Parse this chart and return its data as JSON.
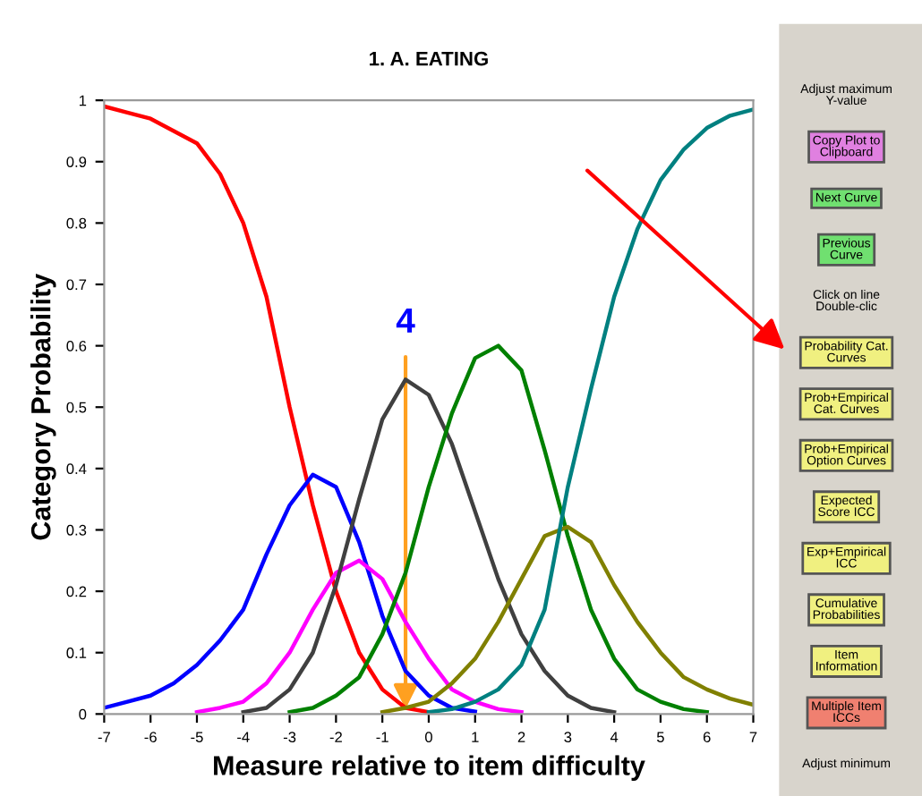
{
  "chart_data": {
    "type": "line",
    "title": "1. A. EATING",
    "xlabel": "Measure relative to item difficulty",
    "ylabel": "Category Probability",
    "x": [
      -7,
      -6.5,
      -6,
      -5.5,
      -5,
      -4.5,
      -4,
      -3.5,
      -3,
      -2.5,
      -2,
      -1.5,
      -1,
      -0.5,
      0,
      0.5,
      1,
      1.5,
      2,
      2.5,
      3,
      3.5,
      4,
      4.5,
      5,
      5.5,
      6,
      6.5,
      7
    ],
    "series": [
      {
        "color": "#ff0000",
        "values": [
          0.99,
          0.98,
          0.97,
          0.95,
          0.93,
          0.88,
          0.8,
          0.68,
          0.5,
          0.34,
          0.2,
          0.1,
          0.04,
          0.01,
          0.003,
          null,
          null,
          null,
          null,
          null,
          null,
          null,
          null,
          null,
          null,
          null,
          null,
          null,
          null
        ]
      },
      {
        "color": "#0000ff",
        "values": [
          0.01,
          0.02,
          0.03,
          0.05,
          0.08,
          0.12,
          0.17,
          0.26,
          0.34,
          0.39,
          0.37,
          0.28,
          0.16,
          0.07,
          0.03,
          0.01,
          0.004,
          null,
          null,
          null,
          null,
          null,
          null,
          null,
          null,
          null,
          null,
          null,
          null
        ]
      },
      {
        "color": "#ff00ff",
        "values": [
          null,
          null,
          null,
          null,
          0.003,
          0.01,
          0.02,
          0.05,
          0.1,
          0.17,
          0.23,
          0.25,
          0.22,
          0.15,
          0.09,
          0.04,
          0.02,
          0.008,
          0.003,
          null,
          null,
          null,
          null,
          null,
          null,
          null,
          null,
          null,
          null
        ]
      },
      {
        "color": "#404040",
        "values": [
          null,
          null,
          null,
          null,
          null,
          null,
          0.003,
          0.01,
          0.04,
          0.1,
          0.21,
          0.35,
          0.48,
          0.545,
          0.52,
          0.44,
          0.33,
          0.22,
          0.13,
          0.07,
          0.03,
          0.01,
          0.003,
          null,
          null,
          null,
          null,
          null,
          null
        ]
      },
      {
        "color": "#008000",
        "values": [
          null,
          null,
          null,
          null,
          null,
          null,
          null,
          null,
          0.003,
          0.01,
          0.03,
          0.06,
          0.13,
          0.23,
          0.37,
          0.49,
          0.58,
          0.6,
          0.56,
          0.43,
          0.29,
          0.17,
          0.09,
          0.04,
          0.02,
          0.008,
          0.003,
          null,
          null
        ]
      },
      {
        "color": "#808000",
        "values": [
          null,
          null,
          null,
          null,
          null,
          null,
          null,
          null,
          null,
          null,
          null,
          null,
          0.003,
          0.01,
          0.02,
          0.05,
          0.09,
          0.15,
          0.22,
          0.29,
          0.305,
          0.28,
          0.21,
          0.15,
          0.1,
          0.06,
          0.04,
          0.025,
          0.015
        ]
      },
      {
        "color": "#008080",
        "values": [
          null,
          null,
          null,
          null,
          null,
          null,
          null,
          null,
          null,
          null,
          null,
          null,
          null,
          null,
          0.003,
          0.008,
          0.02,
          0.04,
          0.08,
          0.17,
          0.37,
          0.53,
          0.68,
          0.79,
          0.87,
          0.92,
          0.955,
          0.975,
          0.985
        ]
      }
    ],
    "xlim": [
      -7,
      7
    ],
    "xticks": [
      -7,
      -6,
      -5,
      -4,
      -3,
      -2,
      -1,
      0,
      1,
      2,
      3,
      4,
      5,
      6,
      7
    ],
    "ylim": [
      0,
      1
    ],
    "yticks": [
      0,
      0.1,
      0.2,
      0.3,
      0.4,
      0.5,
      0.6,
      0.7,
      0.8,
      0.9,
      1
    ],
    "grid": false,
    "legend": false,
    "marker": "none",
    "line_style": "solid",
    "annotations": [
      {
        "text": "4",
        "x": -0.5,
        "y": 0.0
      },
      "Adjust maximum\nY-value",
      "Copy Plot to\nClipboard",
      "Next Curve",
      "Previous\nCurve",
      "Click on line\nDouble-clic",
      "Probability Cat.\nCurves",
      "Prob+Empirical\nCat. Curves",
      "Prob+Empirical\nOption Curves",
      "Expected\nScore ICC",
      "Exp+Empirical\nICC",
      "Cumulative\nProbabilities",
      "Item\nInformation",
      "Multiple Item\nICCs",
      "Adjust minimum"
    ]
  }
}
